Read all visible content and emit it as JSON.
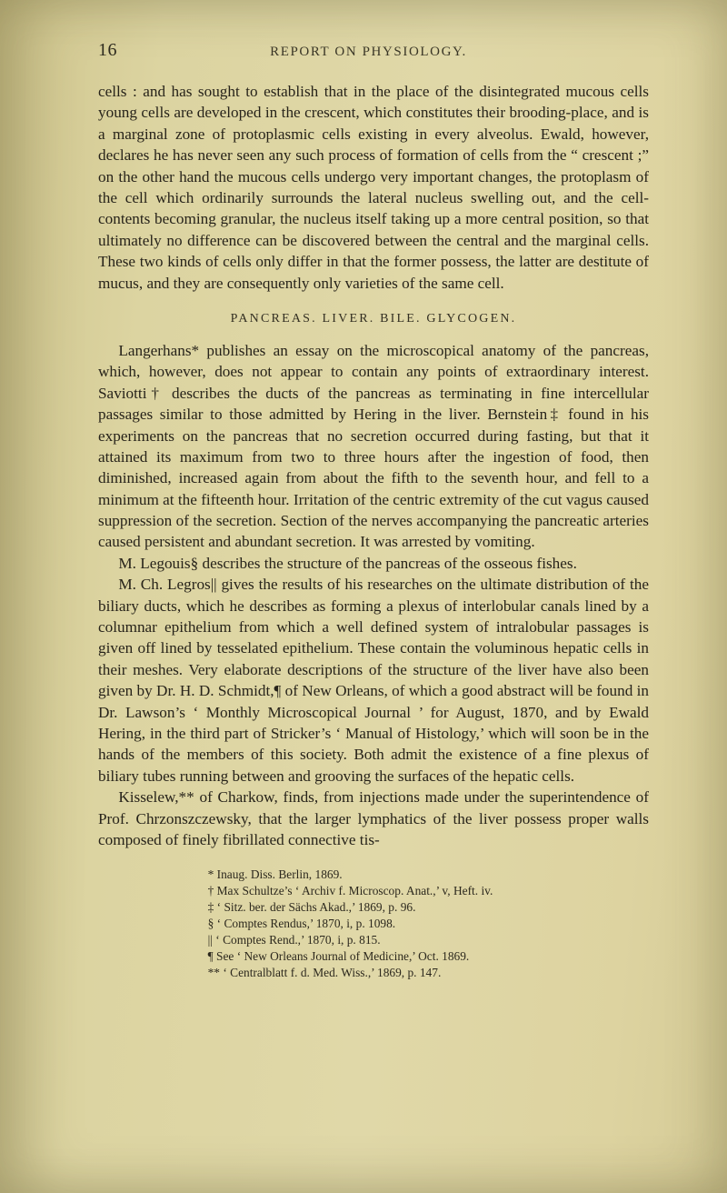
{
  "page_number": "16",
  "running_head": "REPORT ON PHYSIOLOGY.",
  "para1": "cells : and has sought to establish that in the place of the disintegrated mucous cells young cells are developed in the crescent, which consti­tutes their brooding-place, and is a marginal zone of protoplasmic cells existing in every alveolus. Ewald, however, declares he has never seen any such process of formation of cells from the “ crescent ;” on the other hand the mucous cells undergo very important changes, the protoplasm of the cell which ordinarily surrounds the lateral nucleus swelling out, and the cell-contents becoming granular, the nucleus itself taking up a more central position, so that ultimately no difference can be discovered between the central and the marginal cells. These two kinds of cells only differ in that the former possess, the latter are destitute of mucus, and they are consequently only varieties of the same cell.",
  "section_head": "PANCREAS. LIVER. BILE. GLYCOGEN.",
  "para2": "Langerhans* publishes an essay on the microscopical anatomy of the pancreas, which, however, does not appear to contain any points of extraordinary interest. Saviotti† describes the ducts of the pancreas as terminating in fine intercellular passages similar to those admitted by Hering in the liver. Bernstein‡ found in his experiments on the pancreas that no secretion occurred during fasting, but that it attained its maximum from two to three hours after the ingestion of food, then diminished, increased again from about the fifth to the seventh hour, and fell to a minimum at the fifteenth hour. Irritation of the centric extremity of the cut vagus caused suppression of the secretion. Section of the nerves accompanying the pancreatic arteries caused persistent and abundant secretion. It was arrested by vomiting.",
  "para3": "M. Legouis§ describes the structure of the pancreas of the osseous fishes.",
  "para4": "M. Ch. Legros|| gives the results of his researches on the ultimate distribution of the biliary ducts, which he describes as forming a plexus of interlobular canals lined by a columnar epithelium from which a well defined system of intralobular passages is given off lined by tesselated epithelium. These contain the voluminous hepatic cells in their meshes. Very elaborate descriptions of the structure of the liver have also been given by Dr. H. D. Schmidt,¶ of New Orleans, of which a good abstract will be found in Dr. Lawson’s ‘ Monthly Microscopical Journal ’ for August, 1870, and by Ewald Hering, in the third part of Stricker’s ‘ Manual of Histology,’ which will soon be in the hands of the members of this society. Both admit the existence of a fine plexus of biliary tubes running between and grooving the surfaces of the hepatic cells.",
  "para5": "Kisselew,** of Charkow, finds, from injections made under the super­intendence of Prof. Chrzonszczewsky, that the larger lymphatics of the liver possess proper walls composed of finely fibrillated connective tis-",
  "fn1": "* Inaug. Diss. Berlin, 1869.",
  "fn2": "† Max Schultze’s ‘ Archiv f. Microscop. Anat.,’ v, Heft. iv.",
  "fn3": "‡ ‘ Sitz. ber. der Sächs Akad.,’ 1869, p. 96.",
  "fn4": "§ ‘ Comptes Rendus,’ 1870, i, p. 1098.",
  "fn5": "|| ‘ Comptes Rend.,’ 1870, i, p. 815.",
  "fn6": "¶ See ‘ New Orleans Journal of Medicine,’ Oct. 1869.",
  "fn7": "** ‘ Centralblatt f. d. Med. Wiss.,’ 1869, p. 147."
}
